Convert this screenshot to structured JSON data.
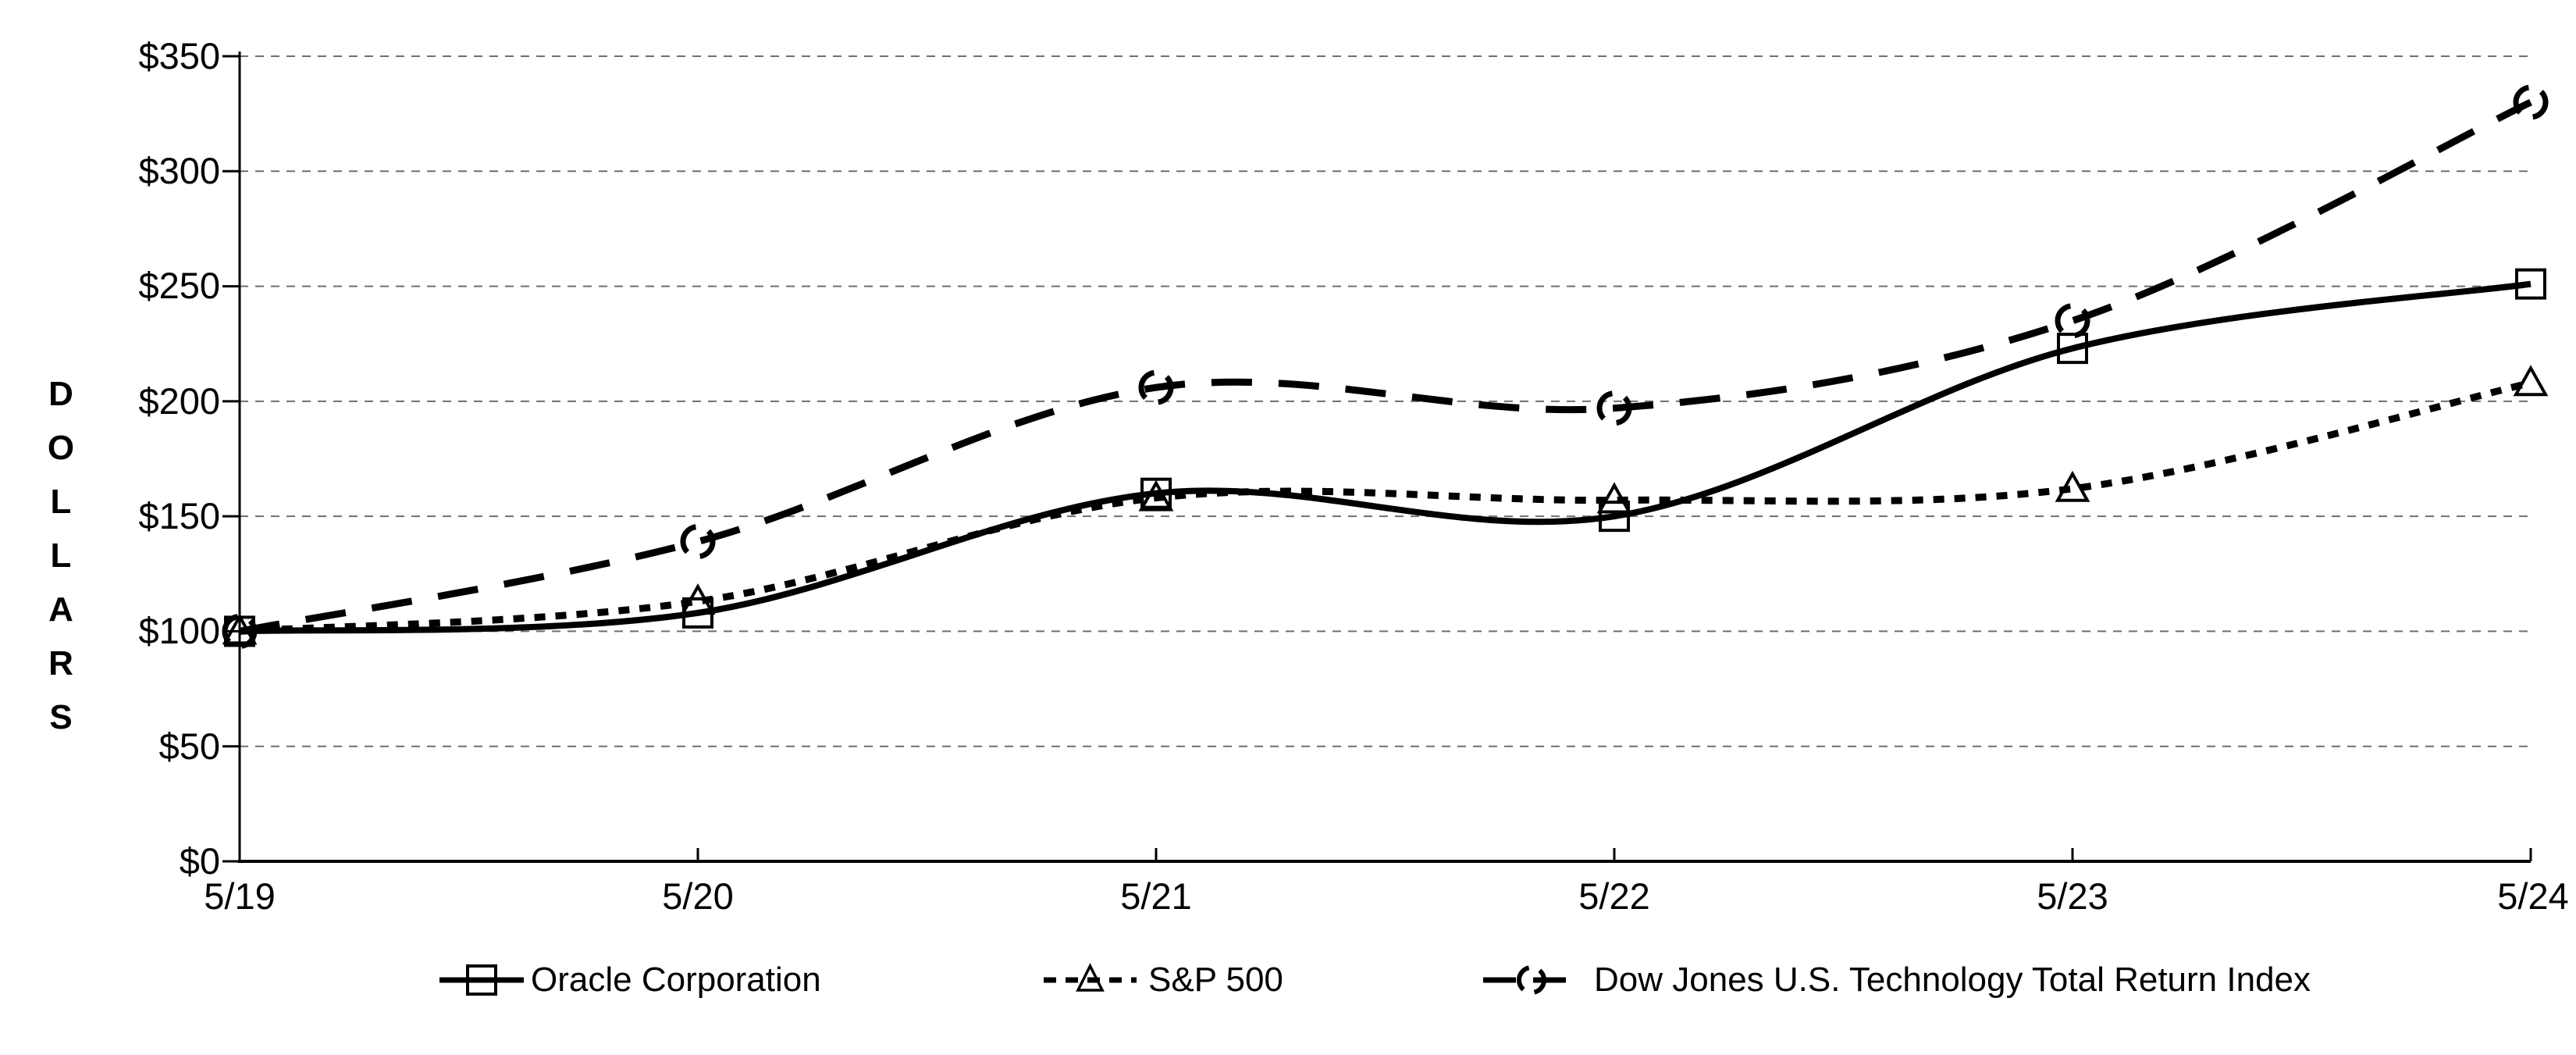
{
  "chart_data": {
    "type": "line",
    "title": "",
    "xlabel": "",
    "ylabel": "DOLLARS",
    "categories": [
      "5/19",
      "5/20",
      "5/21",
      "5/22",
      "5/23",
      "5/24"
    ],
    "y_ticks": [
      "$350",
      "$300",
      "$250",
      "$200",
      "$150",
      "$100",
      "$50",
      "$0"
    ],
    "ylim": [
      0,
      350
    ],
    "y_tick_step": 50,
    "grid": "horizontal-dashed",
    "legend_position": "bottom",
    "series": [
      {
        "name": "Oracle Corporation",
        "marker": "open-square",
        "line_style": "solid",
        "values": [
          100,
          108,
          160,
          150,
          223,
          251
        ]
      },
      {
        "name": "S&P 500",
        "marker": "open-triangle",
        "line_style": "dotted",
        "values": [
          100,
          113,
          158,
          157,
          162,
          208
        ]
      },
      {
        "name": "Dow Jones U.S. Technology Total Return Index",
        "marker": "broken-circle",
        "line_style": "long-dash",
        "values": [
          100,
          139,
          206,
          197,
          235,
          330
        ]
      }
    ],
    "colors": {
      "series": "#000000",
      "grid": "#6f6f6f",
      "axis": "#000000",
      "background": "#ffffff"
    }
  }
}
